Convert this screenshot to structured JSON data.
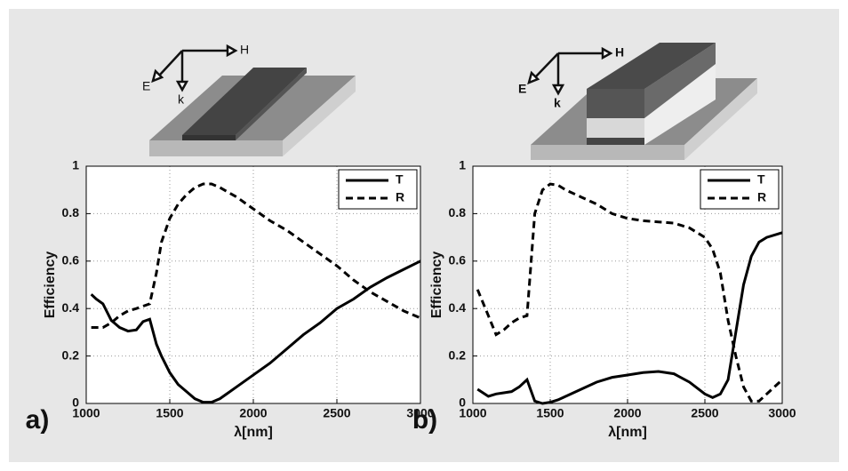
{
  "chart_data": [
    {
      "type": "line",
      "panel_label": "a)",
      "xlabel": "λ[nm]",
      "ylabel": "Efficiency",
      "inset_labels": [
        "H",
        "E",
        "k"
      ],
      "xlim": [
        1000,
        3000
      ],
      "xticks": [
        1000,
        1500,
        2000,
        2500,
        3000
      ],
      "ylim": [
        0,
        1
      ],
      "yticks": [
        0,
        0.2,
        0.4,
        0.6,
        0.8,
        1
      ],
      "grid": true,
      "legend": "upper right",
      "x": [
        1030,
        1060,
        1100,
        1150,
        1200,
        1250,
        1300,
        1340,
        1380,
        1420,
        1450,
        1500,
        1550,
        1600,
        1650,
        1700,
        1750,
        1800,
        1900,
        2000,
        2100,
        2200,
        2300,
        2400,
        2500,
        2600,
        2700,
        2800,
        2900,
        3000
      ],
      "series": [
        {
          "name": "T",
          "color": "#000000",
          "line_style": "solid",
          "values": [
            0.46,
            0.44,
            0.42,
            0.35,
            0.32,
            0.305,
            0.31,
            0.345,
            0.355,
            0.25,
            0.2,
            0.13,
            0.08,
            0.05,
            0.02,
            0.005,
            0.005,
            0.02,
            0.07,
            0.12,
            0.17,
            0.23,
            0.29,
            0.34,
            0.4,
            0.44,
            0.49,
            0.53,
            0.565,
            0.6
          ]
        },
        {
          "name": "R",
          "color": "#000000",
          "line_style": "dashed",
          "values": [
            0.32,
            0.32,
            0.32,
            0.34,
            0.37,
            0.39,
            0.4,
            0.41,
            0.42,
            0.55,
            0.68,
            0.78,
            0.84,
            0.88,
            0.91,
            0.925,
            0.925,
            0.91,
            0.87,
            0.82,
            0.77,
            0.73,
            0.68,
            0.63,
            0.58,
            0.52,
            0.47,
            0.43,
            0.39,
            0.36
          ]
        }
      ]
    },
    {
      "type": "line",
      "panel_label": "b)",
      "xlabel": "λ[nm]",
      "ylabel": "Efficiency",
      "inset_labels": [
        "H",
        "E",
        "k"
      ],
      "xlim": [
        1000,
        3000
      ],
      "xticks": [
        1000,
        1500,
        2000,
        2500,
        3000
      ],
      "ylim": [
        0,
        1
      ],
      "yticks": [
        0,
        0.2,
        0.4,
        0.6,
        0.8,
        1
      ],
      "grid": true,
      "legend": "upper right",
      "x": [
        1030,
        1100,
        1150,
        1200,
        1250,
        1300,
        1350,
        1400,
        1450,
        1500,
        1550,
        1600,
        1700,
        1800,
        1900,
        2000,
        2100,
        2200,
        2300,
        2400,
        2500,
        2550,
        2600,
        2650,
        2700,
        2750,
        2800,
        2850,
        2900,
        3000
      ],
      "series": [
        {
          "name": "T",
          "color": "#000000",
          "line_style": "solid",
          "values": [
            0.06,
            0.03,
            0.04,
            0.045,
            0.05,
            0.07,
            0.1,
            0.01,
            0.0,
            0.005,
            0.015,
            0.03,
            0.06,
            0.09,
            0.11,
            0.12,
            0.13,
            0.135,
            0.125,
            0.09,
            0.04,
            0.025,
            0.04,
            0.1,
            0.3,
            0.5,
            0.62,
            0.68,
            0.7,
            0.72
          ]
        },
        {
          "name": "R",
          "color": "#000000",
          "line_style": "dashed",
          "values": [
            0.48,
            0.37,
            0.29,
            0.31,
            0.34,
            0.36,
            0.37,
            0.8,
            0.9,
            0.925,
            0.92,
            0.9,
            0.87,
            0.84,
            0.8,
            0.78,
            0.77,
            0.765,
            0.76,
            0.74,
            0.7,
            0.65,
            0.55,
            0.35,
            0.2,
            0.07,
            0.01,
            0.01,
            0.04,
            0.1
          ]
        }
      ]
    }
  ]
}
